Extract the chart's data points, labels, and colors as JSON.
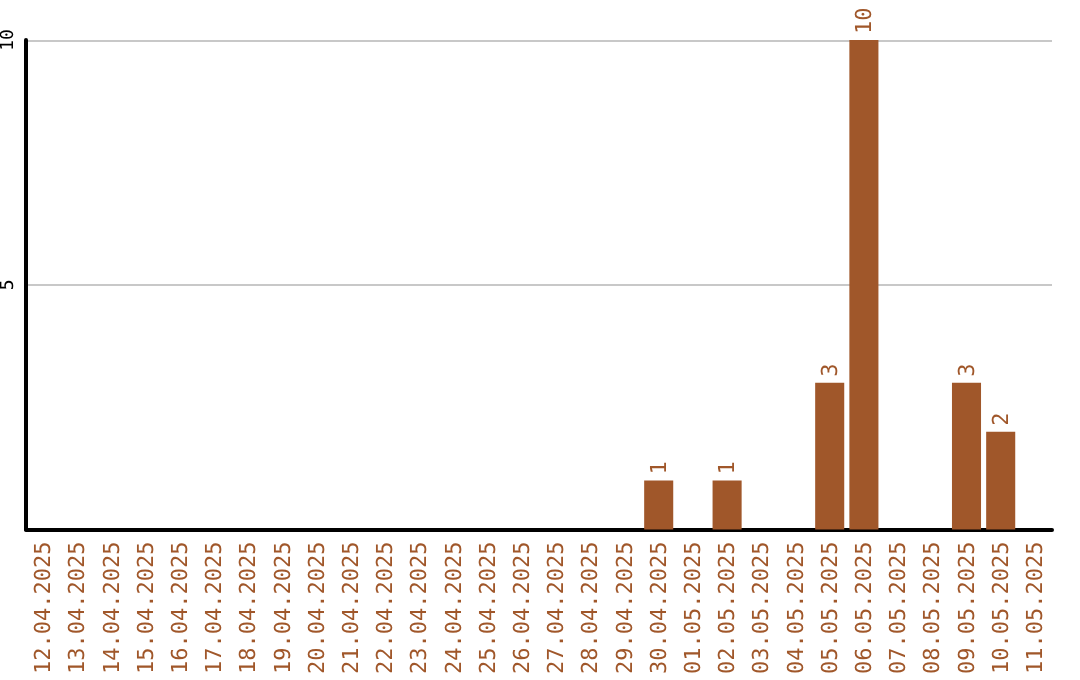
{
  "chart_data": {
    "type": "bar",
    "categories": [
      "12.04.2025",
      "13.04.2025",
      "14.04.2025",
      "15.04.2025",
      "16.04.2025",
      "17.04.2025",
      "18.04.2025",
      "19.04.2025",
      "20.04.2025",
      "21.04.2025",
      "22.04.2025",
      "23.04.2025",
      "24.04.2025",
      "25.04.2025",
      "26.04.2025",
      "27.04.2025",
      "28.04.2025",
      "29.04.2025",
      "30.04.2025",
      "01.05.2025",
      "02.05.2025",
      "03.05.2025",
      "04.05.2025",
      "05.05.2025",
      "06.05.2025",
      "07.05.2025",
      "08.05.2025",
      "09.05.2025",
      "10.05.2025",
      "11.05.2025"
    ],
    "values": [
      0,
      0,
      0,
      0,
      0,
      0,
      0,
      0,
      0,
      0,
      0,
      0,
      0,
      0,
      0,
      0,
      0,
      0,
      1,
      0,
      1,
      0,
      0,
      3,
      10,
      0,
      0,
      3,
      2,
      0
    ],
    "value_labels": [
      null,
      null,
      null,
      null,
      null,
      null,
      null,
      null,
      null,
      null,
      null,
      null,
      null,
      null,
      null,
      null,
      null,
      null,
      "1",
      null,
      "1",
      null,
      null,
      "3",
      "10",
      null,
      null,
      "3",
      "2",
      null
    ],
    "color": "#a0572a",
    "ylim": [
      0,
      10
    ],
    "yticks": [
      5,
      10
    ],
    "grid": "y"
  }
}
